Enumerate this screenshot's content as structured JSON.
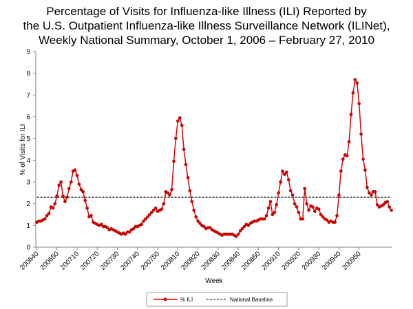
{
  "chart_data": {
    "type": "line",
    "title_lines": [
      "Percentage of Visits for Influenza-like Illness (ILI) Reported by",
      "the U.S. Outpatient Influenza-like Illness Surveillance Network (ILINet),",
      "Weekly National Summary, October 1, 2006 – February 27, 2010"
    ],
    "xlabel": "Week",
    "ylabel": "% of Visits for ILI",
    "ylim": [
      0,
      9
    ],
    "yticks": [
      0,
      1,
      2,
      3,
      4,
      5,
      6,
      7,
      8,
      9
    ],
    "grid": false,
    "legend_position": "bottom-center",
    "x_tick_labels": [
      "200640",
      "200650",
      "200710",
      "200720",
      "200730",
      "200740",
      "200750",
      "200810",
      "200820",
      "200830",
      "200840",
      "200850",
      "200910",
      "200920",
      "200930",
      "200940",
      "200950"
    ],
    "series": [
      {
        "name": "% ILI",
        "color": "#dd0000",
        "marker": "circle",
        "values": [
          1.15,
          1.2,
          1.2,
          1.25,
          1.3,
          1.45,
          1.55,
          1.85,
          1.8,
          2.0,
          2.35,
          2.85,
          3.0,
          2.35,
          2.1,
          2.3,
          2.7,
          3.0,
          3.5,
          3.55,
          3.3,
          2.9,
          2.65,
          2.55,
          2.15,
          1.8,
          1.4,
          1.45,
          1.15,
          1.1,
          1.05,
          1.0,
          1.05,
          0.95,
          0.95,
          0.9,
          0.8,
          0.85,
          0.8,
          0.75,
          0.7,
          0.65,
          0.6,
          0.65,
          0.6,
          0.7,
          0.7,
          0.8,
          0.85,
          0.95,
          0.95,
          1.0,
          1.05,
          1.2,
          1.3,
          1.4,
          1.5,
          1.6,
          1.7,
          1.8,
          1.65,
          1.7,
          1.75,
          2.0,
          2.55,
          2.5,
          2.4,
          2.65,
          3.95,
          5.0,
          5.8,
          5.95,
          5.6,
          4.5,
          3.8,
          3.2,
          2.6,
          2.1,
          1.7,
          1.4,
          1.2,
          1.1,
          1.0,
          0.95,
          0.85,
          0.9,
          0.9,
          0.8,
          0.75,
          0.7,
          0.65,
          0.6,
          0.55,
          0.6,
          0.6,
          0.6,
          0.6,
          0.6,
          0.55,
          0.5,
          0.6,
          0.75,
          0.85,
          0.95,
          1.05,
          1.0,
          1.1,
          1.15,
          1.2,
          1.2,
          1.25,
          1.3,
          1.3,
          1.3,
          1.45,
          1.8,
          2.1,
          1.5,
          1.6,
          1.95,
          2.5,
          3.0,
          3.5,
          3.35,
          3.45,
          3.1,
          2.6,
          2.4,
          2.0,
          1.85,
          1.6,
          1.3,
          1.3,
          2.7,
          2.0,
          1.7,
          1.9,
          1.85,
          1.65,
          1.8,
          1.75,
          1.5,
          1.4,
          1.3,
          1.25,
          1.15,
          1.2,
          1.15,
          1.15,
          1.45,
          2.4,
          3.5,
          4.05,
          4.25,
          4.2,
          4.85,
          6.1,
          7.1,
          7.7,
          7.55,
          6.6,
          5.2,
          4.05,
          3.55,
          2.75,
          2.5,
          2.4,
          2.55,
          2.55,
          1.95,
          1.85,
          1.9,
          1.95,
          2.05,
          2.1,
          1.85,
          1.7
        ]
      },
      {
        "name": "National Baseline",
        "color": "#000000",
        "style": "dashed",
        "values": [
          2.3
        ]
      }
    ]
  }
}
